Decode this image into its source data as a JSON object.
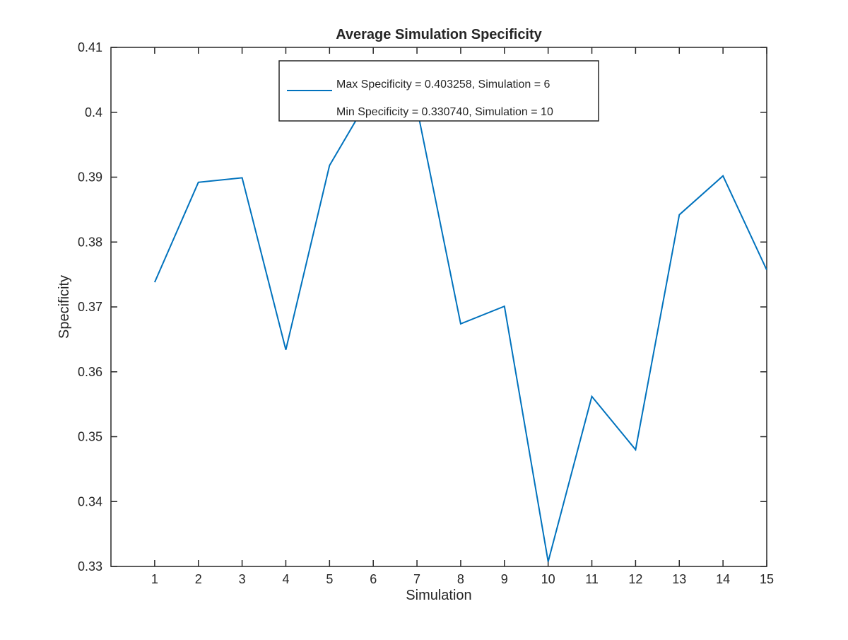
{
  "chart_data": {
    "type": "line",
    "title": "Average Simulation Specificity",
    "xlabel": "Simulation",
    "ylabel": "Specificity",
    "xlim": [
      0,
      15
    ],
    "ylim": [
      0.33,
      0.41
    ],
    "x_ticks": [
      1,
      2,
      3,
      4,
      5,
      6,
      7,
      8,
      9,
      10,
      11,
      12,
      13,
      14,
      15
    ],
    "x_tick_labels": [
      "1",
      "2",
      "3",
      "4",
      "5",
      "6",
      "7",
      "8",
      "9",
      "10",
      "11",
      "12",
      "13",
      "14",
      "15"
    ],
    "y_ticks": [
      0.33,
      0.34,
      0.35,
      0.36,
      0.37,
      0.38,
      0.39,
      0.4,
      0.41
    ],
    "y_tick_labels": [
      "0.33",
      "0.34",
      "0.35",
      "0.36",
      "0.37",
      "0.38",
      "0.39",
      "0.4",
      "0.41"
    ],
    "grid": false,
    "legend_position": "top-center",
    "series": [
      {
        "name": "Max Specificity = 0.403258, Simulation = 6",
        "color": "#0072BD",
        "x": [
          1,
          2,
          3,
          4,
          5,
          6,
          7,
          8,
          9,
          10,
          11,
          12,
          13,
          14,
          15
        ],
        "values": [
          0.3738,
          0.3892,
          0.3899,
          0.3634,
          0.3918,
          0.4033,
          0.4006,
          0.3674,
          0.3701,
          0.33074,
          0.3562,
          0.348,
          0.3842,
          0.3902,
          0.3757
        ]
      }
    ],
    "legend_entries": [
      "Max Specificity = 0.403258, Simulation = 6",
      "Min Specificity = 0.330740, Simulation = 10"
    ]
  }
}
